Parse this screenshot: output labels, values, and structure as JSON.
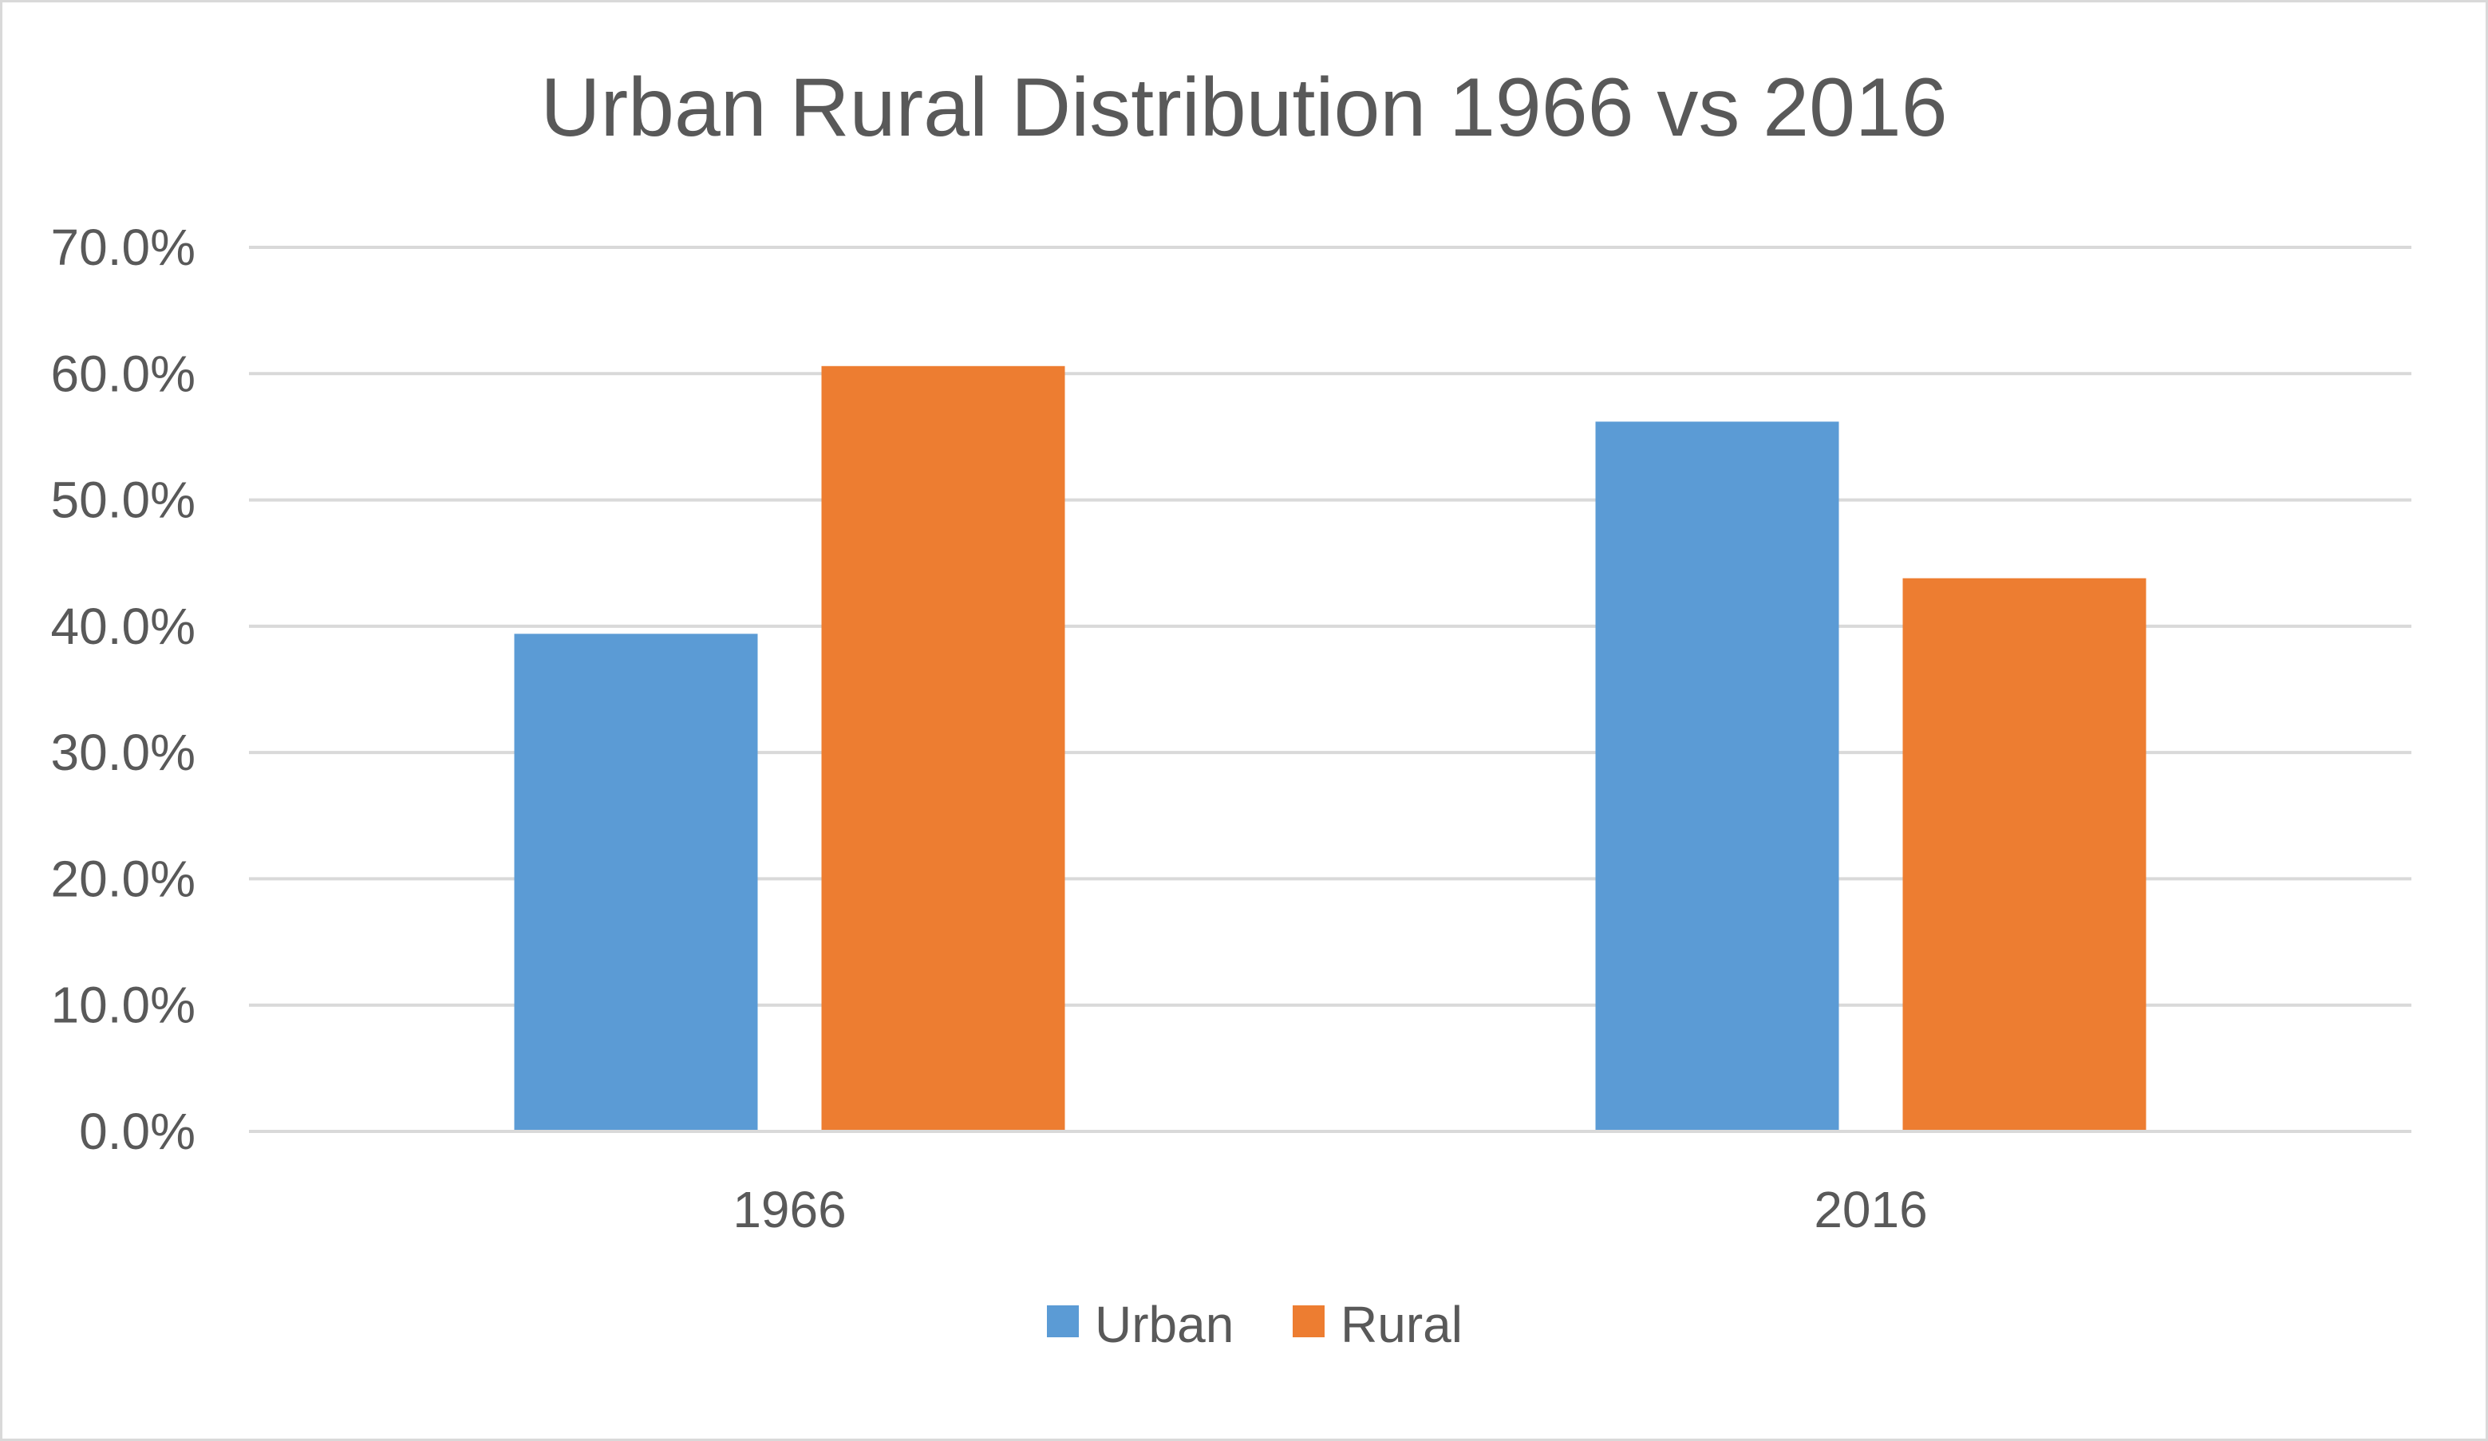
{
  "chart_data": {
    "type": "bar",
    "title": "Urban Rural Distribution 1966 vs 2016",
    "categories": [
      "1966",
      "2016"
    ],
    "series": [
      {
        "name": "Urban",
        "values": [
          39.4,
          56.2
        ],
        "color": "#5b9bd5"
      },
      {
        "name": "Rural",
        "values": [
          60.6,
          43.8
        ],
        "color": "#ed7d31"
      }
    ],
    "ylim": [
      0,
      70
    ],
    "yticks": [
      0,
      10,
      20,
      30,
      40,
      50,
      60,
      70
    ],
    "ytick_labels": [
      "0.0%",
      "10.0%",
      "20.0%",
      "30.0%",
      "40.0%",
      "50.0%",
      "60.0%",
      "70.0%"
    ],
    "grid": true,
    "legend_position": "bottom",
    "colors": {
      "gridline": "#d9d9d9",
      "text": "#595959",
      "border": "#d9d9d9"
    }
  }
}
